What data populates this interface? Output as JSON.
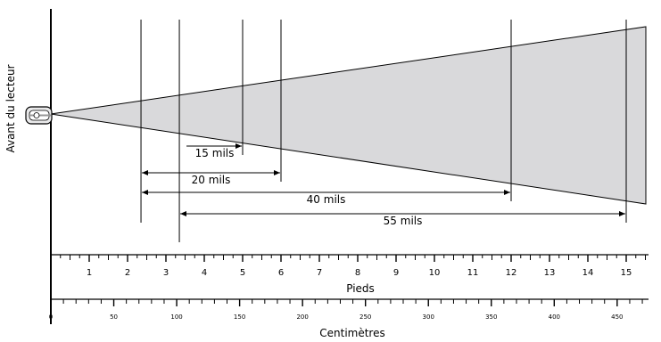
{
  "scanner_label": "Avant du lecteur",
  "ranges": [
    {
      "label": "15 mils",
      "start_ft": 3.35,
      "end_ft": 5.0
    },
    {
      "label": "20 mils",
      "start_ft": 2.35,
      "end_ft": 6.0
    },
    {
      "label": "40 mils",
      "start_ft": 2.35,
      "end_ft": 12.0
    },
    {
      "label": "55 mils",
      "start_ft": 3.35,
      "end_ft": 15.0
    }
  ],
  "feet_axis": {
    "title": "Pieds",
    "ticks": [
      "1",
      "2",
      "3",
      "4",
      "5",
      "6",
      "7",
      "8",
      "9",
      "10",
      "11",
      "12",
      "13",
      "14",
      "15"
    ]
  },
  "cm_axis": {
    "title": "Centimètres",
    "ticks": [
      "0",
      "50",
      "100",
      "150",
      "200",
      "250",
      "300",
      "350",
      "400",
      "450"
    ]
  }
}
